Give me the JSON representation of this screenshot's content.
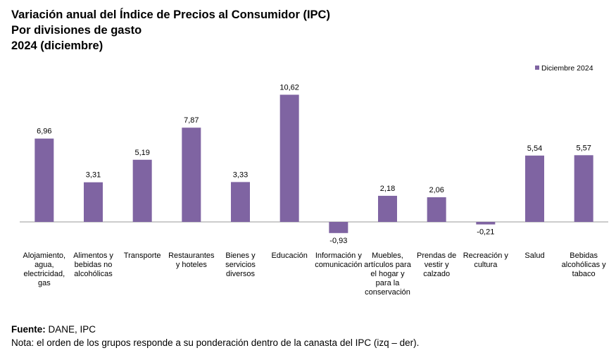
{
  "titles": {
    "line1": "Variación anual del Índice de Precios al Consumidor (IPC)",
    "line2": "Por divisiones de gasto",
    "line3": "2024 (diciembre)"
  },
  "chart_data": {
    "type": "bar",
    "title": "Variación anual del Índice de Precios al Consumidor (IPC)",
    "subtitle": "Por divisiones de gasto — 2024 (diciembre)",
    "categories": [
      [
        "Alojamiento,",
        "agua,",
        "electricidad,",
        "gas"
      ],
      [
        "Alimentos y",
        "bebidas no",
        "alcohólicas"
      ],
      [
        "Transporte"
      ],
      [
        "Restaurantes",
        "y hoteles"
      ],
      [
        "Bienes y",
        "servicios",
        "diversos"
      ],
      [
        "Educación"
      ],
      [
        "Información y",
        "comunicación"
      ],
      [
        "Muebles,",
        "artículos para",
        "el hogar y",
        "para la",
        "conservación"
      ],
      [
        "Prendas de",
        "vestir y",
        "calzado"
      ],
      [
        "Recreación y",
        "cultura"
      ],
      [
        "Salud"
      ],
      [
        "Bebidas",
        "alcohólicas y",
        "tabaco"
      ]
    ],
    "series": [
      {
        "name": "Diciembre 2024",
        "color": "#7f64a2",
        "values": [
          6.96,
          3.31,
          5.19,
          7.87,
          3.33,
          10.62,
          -0.93,
          2.18,
          2.06,
          -0.21,
          5.54,
          5.57
        ],
        "labels": [
          "6,96",
          "3,31",
          "5,19",
          "7,87",
          "3,33",
          "10,62",
          "-0,93",
          "2,18",
          "2,06",
          "-0,21",
          "5,54",
          "5,57"
        ]
      }
    ],
    "ylim": [
      -1,
      11
    ],
    "grid": false,
    "legend": "top-right",
    "xlabel": "",
    "ylabel": ""
  },
  "footer": {
    "source_label": "Fuente:",
    "source_text": " DANE, IPC",
    "note": "Nota: el orden de los grupos responde a su ponderación dentro de la canasta del IPC (izq – der)."
  }
}
